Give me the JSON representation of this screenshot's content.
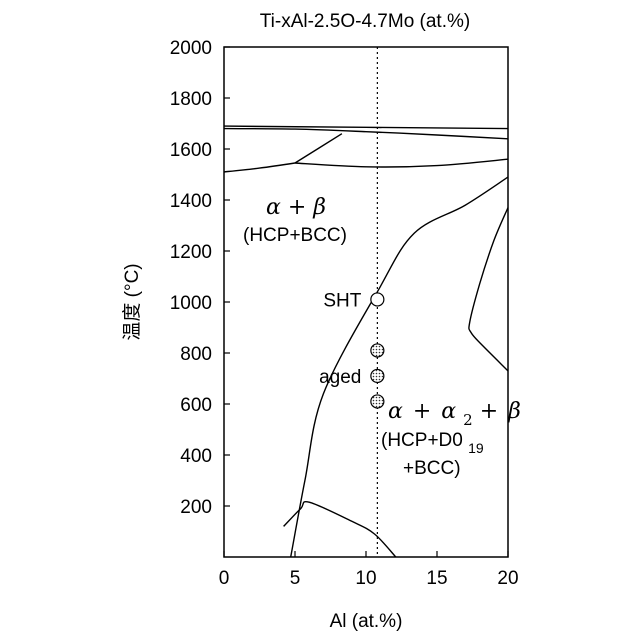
{
  "title": "Ti-xAl-2.5O-4.7Mo (at.%)",
  "axes": {
    "xlabel": "Al (at.%)",
    "ylabel": "温度 (°C)",
    "xlim": [
      0,
      20
    ],
    "ylim": [
      0,
      2000
    ],
    "xticks": [
      "0",
      "5",
      "10",
      "15",
      "20"
    ],
    "yticks": [
      "200",
      "400",
      "600",
      "800",
      "1000",
      "1200",
      "1400",
      "1600",
      "1800",
      "2000"
    ]
  },
  "composition_line": {
    "x": 10.8,
    "style": "dotted"
  },
  "regions": {
    "alpha_beta": {
      "phases": "α + β",
      "structure": "(HCP+BCC)"
    },
    "alpha_alpha2_beta": {
      "phases_alpha": "α",
      "plus1": "+",
      "phases_alpha2": "α",
      "subscript2": "2",
      "plus2": "+",
      "phases_beta": "β",
      "structure_line1": "(HCP+D0",
      "structure_sub": "19",
      "structure_line2": "+BCC)"
    }
  },
  "points": [
    {
      "label": "SHT",
      "temperature": 1010,
      "style": "open"
    },
    {
      "label": "",
      "temperature": 810,
      "style": "dotted"
    },
    {
      "label": "aged",
      "temperature": 710,
      "style": "dotted"
    },
    {
      "label": "",
      "temperature": 610,
      "style": "dotted"
    }
  ],
  "chart_data": {
    "type": "diagram",
    "title": "Ti-xAl-2.5O-4.7Mo (at.%)",
    "xlabel": "Al (at.%)",
    "ylabel": "温度 (°C)",
    "xlim": [
      0,
      20
    ],
    "ylim": [
      0,
      2000
    ],
    "boundaries": [
      {
        "points": [
          [
            0,
            1690
          ],
          [
            20,
            1680
          ]
        ]
      },
      {
        "points": [
          [
            0,
            1680
          ],
          [
            5,
            1678
          ],
          [
            10,
            1668
          ],
          [
            15,
            1655
          ],
          [
            20,
            1640
          ]
        ]
      },
      {
        "points": [
          [
            0,
            1510
          ],
          [
            2.5,
            1525
          ],
          [
            5,
            1545
          ]
        ]
      },
      {
        "points": [
          [
            5,
            1545
          ],
          [
            8.3,
            1660
          ]
        ]
      },
      {
        "points": [
          [
            5,
            1545
          ],
          [
            10,
            1530
          ],
          [
            15,
            1535
          ],
          [
            20,
            1560
          ]
        ]
      },
      {
        "points": [
          [
            4.7,
            0
          ],
          [
            5.7,
            300
          ],
          [
            7,
            640
          ],
          [
            10.9,
            1050
          ],
          [
            13.4,
            1270
          ],
          [
            17,
            1380
          ],
          [
            20,
            1490
          ]
        ]
      },
      {
        "points": [
          [
            20,
            1370
          ],
          [
            19,
            1240
          ],
          [
            18,
            1070
          ],
          [
            17.3,
            920
          ],
          [
            17.4,
            880
          ],
          [
            18.2,
            830
          ],
          [
            20,
            730
          ]
        ]
      },
      {
        "points": [
          [
            4.2,
            120
          ],
          [
            5.4,
            190
          ],
          [
            6,
            215
          ],
          [
            9,
            140
          ],
          [
            10.6,
            90
          ],
          [
            12.1,
            0
          ]
        ]
      }
    ],
    "points": [
      {
        "x": 10.8,
        "y": 1010,
        "label": "SHT"
      },
      {
        "x": 10.8,
        "y": 810
      },
      {
        "x": 10.8,
        "y": 710,
        "label": "aged"
      },
      {
        "x": 10.8,
        "y": 610
      }
    ]
  }
}
